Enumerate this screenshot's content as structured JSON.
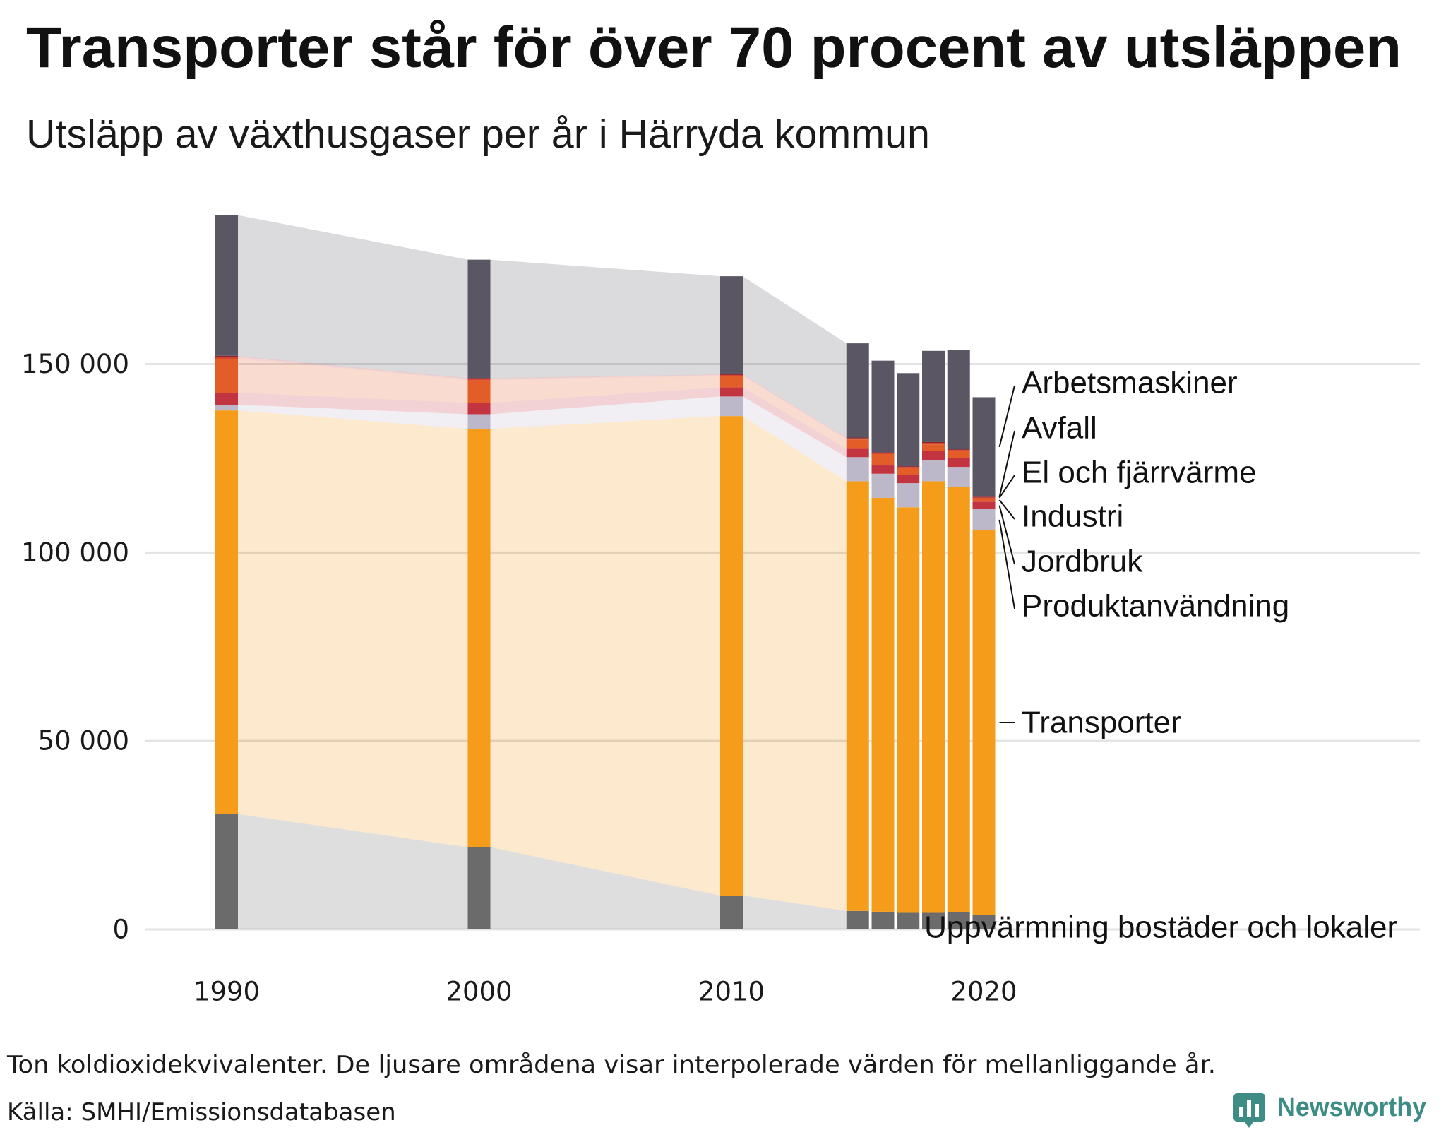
{
  "title": "Transporter står för över 70 procent av utsläppen",
  "subtitle": "Utsläpp av växthusgaser per år i Härryda kommun",
  "footnote": "Ton koldioxidekvivalenter. De ljusare områdena visar interpolerade värden för mellanliggande år.",
  "source": "Källa: SMHI/Emissionsdatabasen",
  "brand": {
    "name": "Newsworthy",
    "color": "#3e8c86",
    "icon": "newsworthy-logo-icon"
  },
  "chart_data": {
    "type": "bar",
    "stacked": true,
    "x": [
      1990,
      2000,
      2010,
      2015,
      2016,
      2017,
      2018,
      2019,
      2020
    ],
    "x_tick_values": [
      1990,
      2000,
      2010,
      2020
    ],
    "x_tick_labels": [
      "1990",
      "2000",
      "2010",
      "2020"
    ],
    "y_tick_values": [
      0,
      50000,
      100000,
      150000
    ],
    "y_tick_labels": [
      "0",
      "50 000",
      "100 000",
      "150 000"
    ],
    "ylim": [
      0,
      190000
    ],
    "grid": true,
    "legend": "right",
    "series": [
      {
        "name": "Uppvärmning bostäder och lokaler",
        "color": "#6b6b6b",
        "values": [
          30600,
          21800,
          9000,
          4900,
          4700,
          4400,
          4400,
          4600,
          3900
        ]
      },
      {
        "name": "Transporter",
        "color": "#f59c1b",
        "values": [
          107100,
          111000,
          127200,
          114000,
          109800,
          107600,
          114500,
          112700,
          102000
        ]
      },
      {
        "name": "Produktanvändning",
        "color": "#bdb8c9",
        "values": [
          1500,
          3900,
          5200,
          6400,
          6400,
          6400,
          5600,
          5400,
          5600
        ]
      },
      {
        "name": "Jordbruk",
        "color": "#c2343f",
        "values": [
          3200,
          3000,
          2400,
          2200,
          2200,
          2200,
          2400,
          2400,
          2000
        ]
      },
      {
        "name": "Industri",
        "color": "#e35d29",
        "values": [
          9000,
          6000,
          3000,
          2500,
          3000,
          1800,
          1800,
          1800,
          900
        ]
      },
      {
        "name": "El och fjärrvärme",
        "color": "#d4452f",
        "values": [
          500,
          300,
          300,
          300,
          300,
          300,
          400,
          300,
          200
        ]
      },
      {
        "name": "Avfall",
        "color": "#8a2230",
        "values": [
          300,
          300,
          200,
          200,
          200,
          200,
          200,
          200,
          200
        ]
      },
      {
        "name": "Arbetsmaskiner",
        "color": "#5a5664",
        "values": [
          37300,
          31400,
          26000,
          25000,
          24300,
          24700,
          24200,
          26400,
          26400
        ]
      }
    ]
  }
}
